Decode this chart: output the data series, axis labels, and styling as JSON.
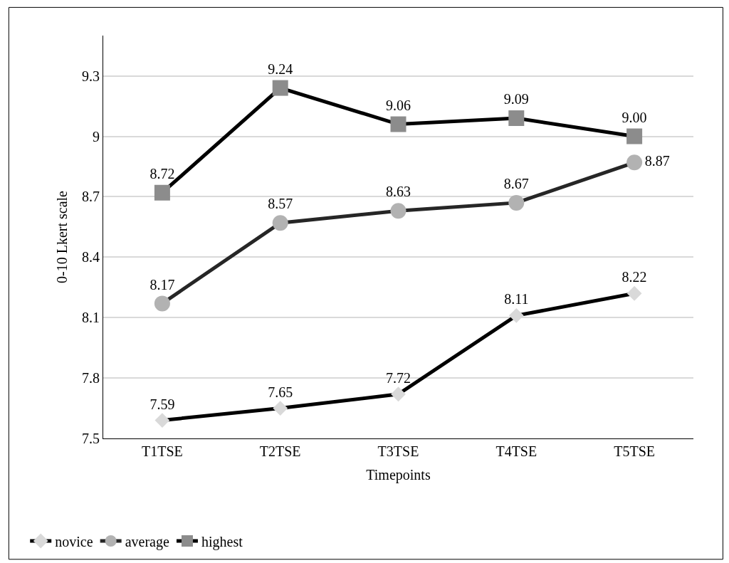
{
  "chart_data": {
    "type": "line",
    "xlabel": "Timepoints",
    "ylabel": "0-10 Lkert scale",
    "categories": [
      "T1TSE",
      "T2TSE",
      "T3TSE",
      "T4TSE",
      "T5TSE"
    ],
    "series": [
      {
        "name": "novice",
        "color": "#000000",
        "marker": "diamond",
        "colors": [
          "#d9d9d9",
          "#d9d9d9",
          "#d9d9d9",
          "#d9d9d9",
          "#d9d9d9"
        ],
        "values": [
          7.59,
          7.65,
          7.72,
          8.11,
          8.22
        ],
        "value_labels": [
          "7.59",
          "7.65",
          "7.72",
          "8.11",
          "8.22"
        ]
      },
      {
        "name": "average",
        "color": "#262626",
        "marker": "circle",
        "colors": [
          "#b2b2b2",
          "#b2b2b2",
          "#b2b2b2",
          "#b2b2b2",
          "#b2b2b2"
        ],
        "values": [
          8.17,
          8.57,
          8.63,
          8.67,
          8.87
        ],
        "value_labels": [
          "8.17",
          "8.57",
          "8.63",
          "8.67",
          "8.87"
        ]
      },
      {
        "name": "highest",
        "color": "#000000",
        "marker": "square",
        "colors": [
          "#8c8c8c",
          "#8c8c8c",
          "#8c8c8c",
          "#8c8c8c",
          "#8c8c8c"
        ],
        "values": [
          8.72,
          9.24,
          9.06,
          9.09,
          9.0
        ],
        "value_labels": [
          "8.72",
          "9.24",
          "9.06",
          "9.09",
          "9.00"
        ]
      }
    ],
    "ylim": [
      7.5,
      9.5
    ],
    "yticks": [
      7.5,
      7.8,
      8.1,
      8.4,
      8.7,
      9,
      9.3
    ],
    "grid": "y",
    "legend": "bottom left"
  }
}
